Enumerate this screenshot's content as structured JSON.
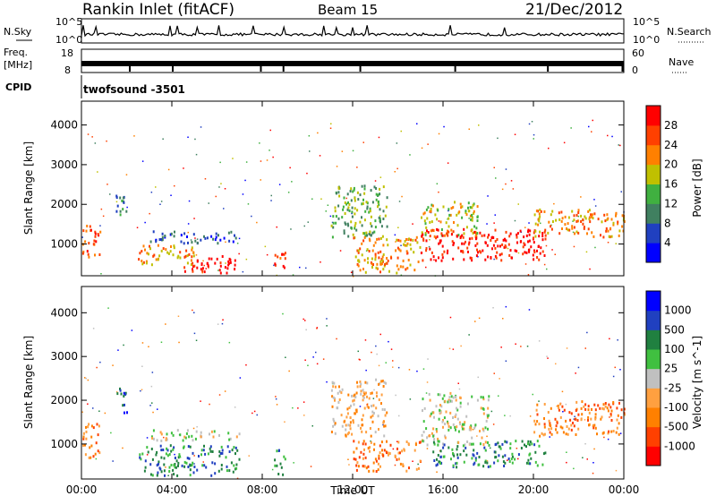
{
  "header": {
    "station": "Rankin Inlet (fitACF)",
    "beam": "Beam 15",
    "date": "21/Dec/2012"
  },
  "top_panels": {
    "nsky_label": "N.Sky",
    "nsearch_label": "N.Search",
    "nsky_ticks": [
      "10^5",
      "10^0"
    ],
    "nsearch_ticks": [
      "10^5",
      "10^0"
    ],
    "freq_label": "Freq.",
    "freq_unit": "[MHz]",
    "freq_ticks": [
      "18",
      "8"
    ],
    "nave_label": "Nave",
    "nave_ticks": [
      "60",
      "0"
    ],
    "cpid_label": "CPID",
    "cpid_value": "twofsound -3501"
  },
  "chart_data": [
    {
      "type": "heatmap",
      "name": "power-panel",
      "ylabel": "Slant Range [km]",
      "xlabel": "",
      "x_ticks": [
        "00:00",
        "04:00",
        "08:00",
        "12:00",
        "16:00",
        "20:00",
        "00:00"
      ],
      "y_ticks": [
        1000,
        2000,
        3000,
        4000
      ],
      "ylim": [
        200,
        4600
      ],
      "colorbar_label": "Power [dB]",
      "colorbar_ticks": [
        "28",
        "24",
        "20",
        "16",
        "12",
        "8",
        "4"
      ],
      "colorscale": [
        "#0000ff",
        "#2040c0",
        "#408060",
        "#40b040",
        "#c0c000",
        "#ff8000",
        "#ff4000",
        "#ff0000"
      ],
      "regions": [
        {
          "t0": 0.0,
          "t1": 0.8,
          "r0": 700,
          "r1": 1500,
          "level": 6
        },
        {
          "t0": 1.5,
          "t1": 2.0,
          "r0": 1600,
          "r1": 2300,
          "level": 2
        },
        {
          "t0": 3.0,
          "t1": 6.8,
          "r0": 1050,
          "r1": 1350,
          "level": 1
        },
        {
          "t0": 2.5,
          "t1": 5.0,
          "r0": 500,
          "r1": 1000,
          "level": 5
        },
        {
          "t0": 4.5,
          "t1": 6.8,
          "r0": 300,
          "r1": 750,
          "level": 7
        },
        {
          "t0": 8.5,
          "t1": 9.0,
          "r0": 300,
          "r1": 900,
          "level": 6
        },
        {
          "t0": 11.0,
          "t1": 13.5,
          "r0": 1200,
          "r1": 2500,
          "level": 3
        },
        {
          "t0": 12.0,
          "t1": 15.0,
          "r0": 300,
          "r1": 1200,
          "level": 5
        },
        {
          "t0": 15.0,
          "t1": 17.5,
          "r0": 1200,
          "r1": 2100,
          "level": 4
        },
        {
          "t0": 15.0,
          "t1": 20.5,
          "r0": 600,
          "r1": 1400,
          "level": 7
        },
        {
          "t0": 20.0,
          "t1": 24.0,
          "r0": 1200,
          "r1": 1900,
          "level": 5
        }
      ]
    },
    {
      "type": "heatmap",
      "name": "velocity-panel",
      "ylabel": "Slant Range [km]",
      "xlabel": "Time UT",
      "x_ticks": [
        "00:00",
        "04:00",
        "08:00",
        "12:00",
        "16:00",
        "20:00",
        "00:00"
      ],
      "y_ticks": [
        1000,
        2000,
        3000,
        4000
      ],
      "ylim": [
        200,
        4600
      ],
      "colorbar_label": "Velocity [m s^-1]",
      "colorbar_ticks": [
        "1000",
        "500",
        "100",
        "25",
        "-25",
        "-100",
        "-500",
        "-1000"
      ],
      "colorscale": [
        "#ff0000",
        "#ff4000",
        "#ff8000",
        "#ffa040",
        "#c0c0c0",
        "#40c040",
        "#208040",
        "#2040c0",
        "#0000ff"
      ],
      "regions": [
        {
          "t0": 0.0,
          "t1": 0.8,
          "r0": 700,
          "r1": 1500,
          "level": 2
        },
        {
          "t0": 1.5,
          "t1": 2.0,
          "r0": 1700,
          "r1": 2300,
          "level": 7
        },
        {
          "t0": 3.0,
          "t1": 7.0,
          "r0": 1100,
          "r1": 1350,
          "level": 4
        },
        {
          "t0": 2.5,
          "t1": 7.0,
          "r0": 300,
          "r1": 1000,
          "level": 6
        },
        {
          "t0": 8.5,
          "t1": 9.0,
          "r0": 300,
          "r1": 900,
          "level": 6
        },
        {
          "t0": 11.0,
          "t1": 13.5,
          "r0": 1200,
          "r1": 2500,
          "level": 3
        },
        {
          "t0": 12.0,
          "t1": 15.0,
          "r0": 400,
          "r1": 1100,
          "level": 2
        },
        {
          "t0": 15.0,
          "t1": 18.0,
          "r0": 1000,
          "r1": 2200,
          "level": 4
        },
        {
          "t0": 15.5,
          "t1": 20.5,
          "r0": 500,
          "r1": 1100,
          "level": 6
        },
        {
          "t0": 20.0,
          "t1": 24.0,
          "r0": 1200,
          "r1": 2000,
          "level": 2
        }
      ]
    }
  ]
}
